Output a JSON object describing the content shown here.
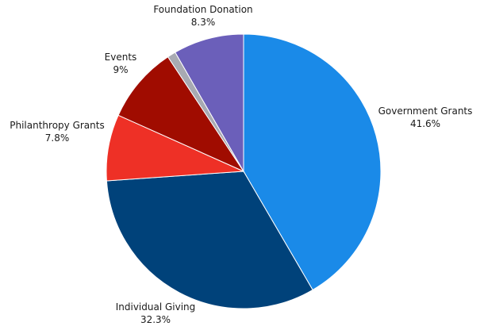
{
  "chart_data": {
    "type": "pie",
    "start_angle_deg": 0,
    "direction": "clockwise",
    "slices": [
      {
        "name": "Government Grants",
        "value": 41.6,
        "value_label": "41.6%",
        "color": "#1a8ae8"
      },
      {
        "name": "Individual Giving",
        "value": 32.3,
        "value_label": "32.3%",
        "color": "#00427a"
      },
      {
        "name": "Philanthropy Grants",
        "value": 7.8,
        "value_label": "7.8%",
        "color": "#ee3026"
      },
      {
        "name": "Events",
        "value": 9.0,
        "value_label": "9%",
        "color": "#a00c00"
      },
      {
        "name": "",
        "value": 1.0,
        "value_label": "",
        "color": "#a8aab2"
      },
      {
        "name": "Foundation Donation",
        "value": 8.3,
        "value_label": "8.3%",
        "color": "#6b5fba"
      }
    ]
  }
}
